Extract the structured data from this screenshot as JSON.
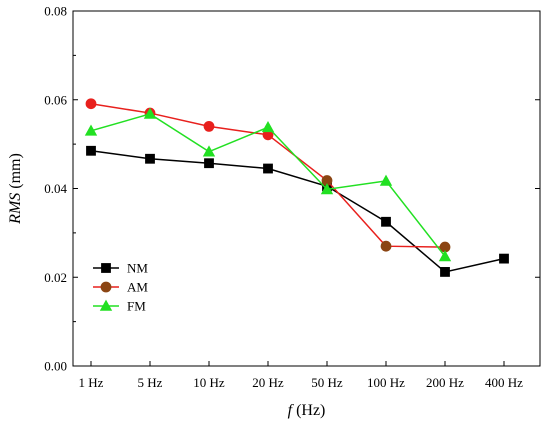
{
  "chart_data": {
    "type": "line",
    "categories": [
      "1 Hz",
      "5 Hz",
      "10 Hz",
      "20 Hz",
      "50 Hz",
      "100 Hz",
      "200 Hz",
      "400 Hz"
    ],
    "ylabel_italic": "RMS",
    "ylabel_unit": " (mm)",
    "xlabel_italic": "f",
    "xlabel_unit": " (Hz)",
    "ylim": [
      0,
      0.08
    ],
    "yticks": [
      0.0,
      0.02,
      0.04,
      0.06,
      0.08
    ],
    "ytick_labels": [
      "0.00",
      "0.02",
      "0.04",
      "0.06",
      "0.08"
    ],
    "grid": false,
    "legend_position": "bottom-left",
    "series": [
      {
        "name": "NM",
        "color": "#000000",
        "marker": "square",
        "values": [
          0.0485,
          0.0467,
          0.0457,
          0.0445,
          0.0405,
          0.0325,
          0.0212,
          0.0242
        ]
      },
      {
        "name": "AM",
        "color": "#e8201d",
        "marker_color": "#8b4513",
        "marker_color_high": "#e8201d",
        "marker": "circle",
        "values": [
          0.0591,
          0.057,
          0.054,
          0.0521,
          0.0418,
          0.027,
          0.0268,
          null
        ]
      },
      {
        "name": "FM",
        "color": "#22e022",
        "marker": "triangle",
        "values": [
          0.053,
          0.0568,
          0.0483,
          0.0538,
          0.0398,
          0.0417,
          0.0247,
          null
        ]
      }
    ]
  }
}
